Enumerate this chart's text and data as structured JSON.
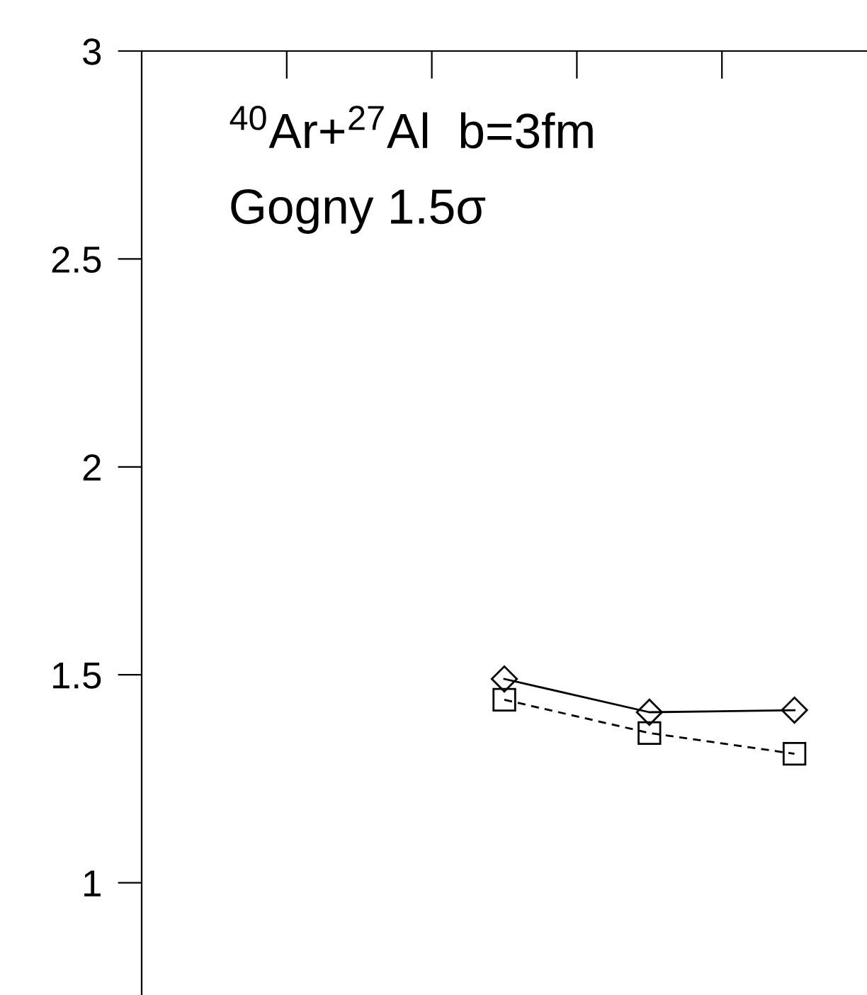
{
  "chart_data": {
    "type": "line",
    "annotations": [
      "$^{40}$Ar+$^{27}$Al  b=3fm",
      "Gogny 1.5σ"
    ],
    "categories": [
      null,
      null,
      null,
      null,
      null
    ],
    "series": [
      {
        "color": "#000000",
        "marker": "diamond",
        "line_style": "solid",
        "values": [
          null,
          null,
          1.49,
          1.41,
          1.415
        ]
      },
      {
        "color": "#000000",
        "marker": "square",
        "line_style": "dashed",
        "values": [
          null,
          null,
          1.44,
          1.36,
          1.31
        ]
      }
    ],
    "ylim": [
      0.73,
      3
    ],
    "yticks": [
      1,
      1.5,
      2,
      2.5,
      3
    ],
    "tick_labels": "y",
    "grid": false,
    "legend": false
  }
}
